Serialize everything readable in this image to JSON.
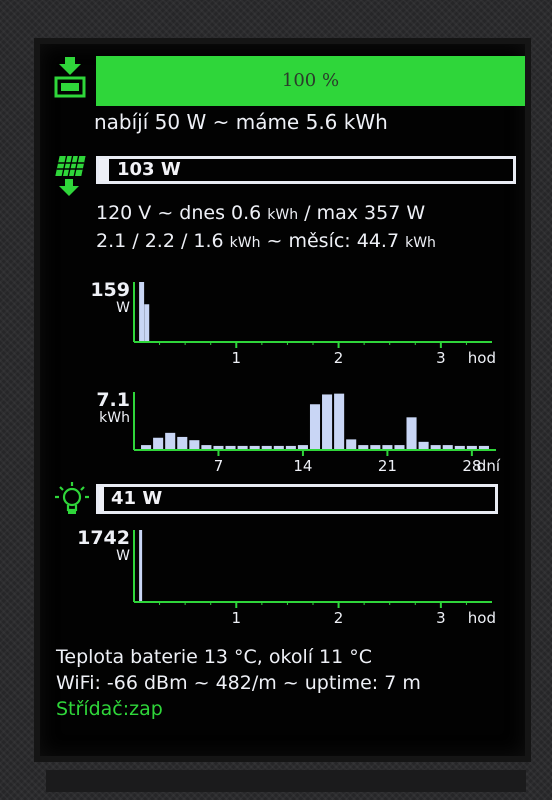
{
  "battery": {
    "percent_label": "100 %",
    "charge_fraction": 1.0,
    "status_text": "nabíjí 50 W ~ máme 5.6 kWh"
  },
  "solar": {
    "power_label": "103 W",
    "line1_pre": "120 V ~ dnes 0.6 ",
    "line1_unit": "kWh",
    "line1_post": " / max 357 W",
    "line2_pre": "2.1 / 2.2 / 1.6 ",
    "line2_unit": "kWh",
    "line2_mid": " ~ měsíc: 44.7 ",
    "line2_unit2": "kWh"
  },
  "load": {
    "power_label": "41 W"
  },
  "footer": {
    "temperature": "Teplota baterie 13 °C, okolí 11 °C",
    "wifi": "WiFi: -66 dBm ~ 482/m ~ uptime: 7 m",
    "inverter": "Střídač:zap"
  },
  "colors": {
    "accent_green": "#2fd63a",
    "bar_blue": "#c9d6f5",
    "text": "#eef0f6",
    "background": "#020202"
  },
  "icons": {
    "battery": "battery-charging-icon",
    "solar": "solar-panel-icon",
    "load": "lightbulb-icon"
  },
  "chart_data": [
    {
      "type": "bar",
      "ymax_label": "159",
      "yunit": "W",
      "xunit": "hod",
      "xticks": [
        "1",
        "2",
        "3"
      ],
      "xtick_values": [
        1,
        2,
        3
      ],
      "xlim": [
        0,
        3.5
      ],
      "ylim": [
        0,
        159
      ],
      "x": [
        0.05,
        0.1
      ],
      "values": [
        159,
        100
      ]
    },
    {
      "type": "bar",
      "ymax_label": "7.1",
      "yunit": "kWh",
      "xunit": "dní",
      "xticks": [
        "7",
        "14",
        "21",
        "28"
      ],
      "xtick_values": [
        7,
        14,
        21,
        28
      ],
      "xlim": [
        0,
        30
      ],
      "ylim": [
        0,
        7.1
      ],
      "x": [
        1,
        2,
        3,
        4,
        5,
        6,
        7,
        8,
        9,
        10,
        11,
        12,
        13,
        14,
        15,
        16,
        17,
        18,
        19,
        20,
        21,
        22,
        23,
        24,
        25,
        26,
        27,
        28,
        29
      ],
      "values": [
        0.6,
        1.5,
        2.1,
        1.6,
        1.2,
        0.6,
        0.5,
        0.5,
        0.5,
        0.5,
        0.5,
        0.5,
        0.5,
        0.6,
        5.6,
        6.8,
        6.9,
        1.3,
        0.6,
        0.6,
        0.6,
        0.6,
        4.0,
        1.0,
        0.6,
        0.6,
        0.5,
        0.5,
        0.5
      ]
    },
    {
      "type": "bar",
      "ymax_label": "1742",
      "yunit": "W",
      "xunit": "hod",
      "xticks": [
        "1",
        "2",
        "3"
      ],
      "xtick_values": [
        1,
        2,
        3
      ],
      "xlim": [
        0,
        3.5
      ],
      "ylim": [
        0,
        1742
      ],
      "x": [
        0.05
      ],
      "values": [
        1742
      ]
    }
  ]
}
